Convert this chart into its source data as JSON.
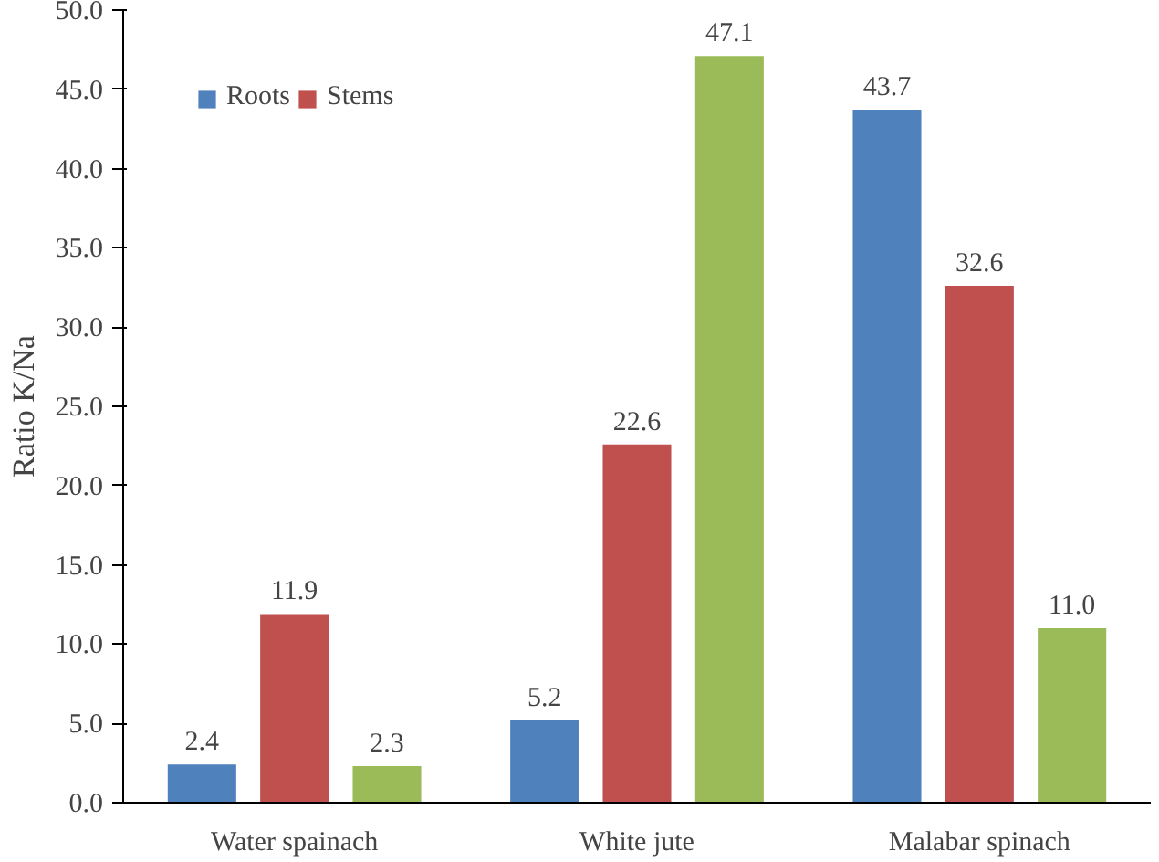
{
  "chart_data": {
    "type": "bar",
    "ylabel": "Ratio K/Na",
    "categories": [
      "Water spainach",
      "White jute",
      "Malabar spinach"
    ],
    "ylim": [
      0,
      50
    ],
    "yticks": [
      {
        "value": 0,
        "label": "0.0"
      },
      {
        "value": 5,
        "label": "5.0"
      },
      {
        "value": 10,
        "label": "10.0"
      },
      {
        "value": 15,
        "label": "15.0"
      },
      {
        "value": 20,
        "label": "20.0"
      },
      {
        "value": 25,
        "label": "25.0"
      },
      {
        "value": 30,
        "label": "30.0"
      },
      {
        "value": 35,
        "label": "35.0"
      },
      {
        "value": 40,
        "label": "40.0"
      },
      {
        "value": 45,
        "label": "45.0"
      },
      {
        "value": 50,
        "label": "50.0"
      }
    ],
    "grid": false,
    "legend": "top left",
    "series": [
      {
        "name": "Roots",
        "color": "#4f81bd",
        "values": [
          2.4,
          5.2,
          43.7
        ],
        "value_labels": [
          "2.4",
          "5.2",
          "43.7"
        ]
      },
      {
        "name": "Stems",
        "color": "#c0504d",
        "values": [
          11.9,
          22.6,
          32.6
        ],
        "value_labels": [
          "11.9",
          "22.6",
          "32.6"
        ]
      },
      {
        "color": "#9bbb59",
        "values": [
          2.3,
          47.1,
          11.0
        ],
        "value_labels": [
          "2.3",
          "47.1",
          "11.0"
        ]
      }
    ]
  }
}
